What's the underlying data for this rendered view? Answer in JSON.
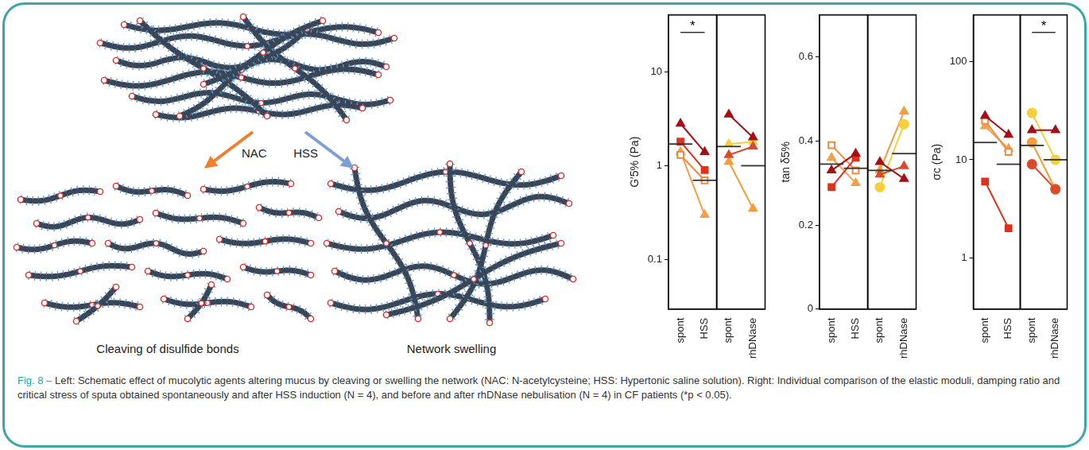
{
  "diagram": {
    "arrows": [
      {
        "label": "NAC",
        "color": "#f08030"
      },
      {
        "label": "HSS",
        "color": "#7f9fd4"
      }
    ],
    "panels": [
      {
        "label": "Cleaving of disulfide bonds"
      },
      {
        "label": "Network swelling"
      }
    ]
  },
  "chart_data": [
    {
      "type": "line",
      "ylabel": "G′5% (Pa)",
      "log": "y",
      "ylim": [
        0.03,
        40
      ],
      "yticks": [
        0.1,
        1,
        10
      ],
      "grid": false,
      "groups": [
        {
          "categories": [
            "spont",
            "HSS"
          ],
          "significance": "*",
          "means": [
            1.7,
            0.7
          ],
          "series": [
            {
              "color": "#a50f15",
              "marker": "triangle",
              "values": [
                2.8,
                1.4
              ]
            },
            {
              "color": "#e0301e",
              "marker": "square",
              "values": [
                1.8,
                0.9
              ]
            },
            {
              "color": "#f08a3c",
              "marker": "open_square",
              "values": [
                1.3,
                0.7
              ]
            },
            {
              "color": "#f4a04a",
              "marker": "triangle",
              "values": [
                1.4,
                0.3
              ]
            }
          ]
        },
        {
          "categories": [
            "spont",
            "rhDNase"
          ],
          "means": [
            1.6,
            1.0
          ],
          "series": [
            {
              "color": "#a50f15",
              "marker": "triangle",
              "values": [
                3.5,
                2.0
              ]
            },
            {
              "color": "#d94b2b",
              "marker": "triangle",
              "values": [
                1.3,
                1.6
              ]
            },
            {
              "color": "#f6d03c",
              "marker": "triangle",
              "values": [
                1.7,
                1.8
              ]
            },
            {
              "color": "#f39c3a",
              "marker": "triangle",
              "values": [
                1.1,
                0.35
              ]
            }
          ]
        }
      ]
    },
    {
      "type": "line",
      "ylabel": "tan δ5%",
      "ylim": [
        0,
        0.7
      ],
      "yticks": [
        0,
        0.2,
        0.4,
        0.6
      ],
      "grid": false,
      "groups": [
        {
          "categories": [
            "spont",
            "HSS"
          ],
          "means": [
            0.345,
            0.335
          ],
          "series": [
            {
              "color": "#a50f15",
              "marker": "triangle",
              "values": [
                0.33,
                0.37
              ]
            },
            {
              "color": "#e0301e",
              "marker": "square",
              "values": [
                0.29,
                0.36
              ]
            },
            {
              "color": "#f08a3c",
              "marker": "open_square",
              "values": [
                0.39,
                0.33
              ]
            },
            {
              "color": "#f4a04a",
              "marker": "triangle",
              "values": [
                0.36,
                0.3
              ]
            }
          ]
        },
        {
          "categories": [
            "spont",
            "rhDNase"
          ],
          "means": [
            0.33,
            0.37
          ],
          "series": [
            {
              "color": "#a50f15",
              "marker": "triangle",
              "values": [
                0.35,
                0.31
              ]
            },
            {
              "color": "#d94b2b",
              "marker": "triangle",
              "values": [
                0.32,
                0.34
              ]
            },
            {
              "color": "#f6d03c",
              "marker": "circle",
              "values": [
                0.29,
                0.44
              ]
            },
            {
              "color": "#f39c3a",
              "marker": "triangle",
              "values": [
                0.33,
                0.47
              ]
            }
          ]
        }
      ]
    },
    {
      "type": "line",
      "ylabel": "σc (Pa)",
      "log": "y",
      "ylim": [
        0.3,
        300
      ],
      "yticks": [
        1,
        10,
        100
      ],
      "grid": false,
      "groups": [
        {
          "categories": [
            "spont",
            "HSS"
          ],
          "means": [
            15,
            9
          ],
          "series": [
            {
              "color": "#a50f15",
              "marker": "triangle",
              "values": [
                28,
                18
              ]
            },
            {
              "color": "#e0301e",
              "marker": "square",
              "values": [
                6,
                2
              ]
            },
            {
              "color": "#f08a3c",
              "marker": "open_square",
              "values": [
                25,
                12
              ]
            },
            {
              "color": "#f4a04a",
              "marker": "triangle",
              "values": [
                22,
                13
              ]
            }
          ]
        },
        {
          "categories": [
            "spont",
            "rhDNase"
          ],
          "significance": "*",
          "means": [
            14,
            10
          ],
          "series": [
            {
              "color": "#a50f15",
              "marker": "triangle",
              "values": [
                20,
                20
              ]
            },
            {
              "color": "#d94b2b",
              "marker": "circle",
              "values": [
                9,
                5
              ]
            },
            {
              "color": "#f6d03c",
              "marker": "circle",
              "values": [
                30,
                10
              ]
            },
            {
              "color": "#f39c3a",
              "marker": "circle",
              "values": [
                15,
                5
              ]
            }
          ]
        }
      ]
    }
  ],
  "caption": {
    "label": "Fig. 8 –",
    "text": "Left: Schematic effect of mucolytic agents altering mucus by cleaving or swelling the network (NAC: N-acetylcysteine; HSS: Hypertonic saline solution). Right: Individual comparison of the elastic moduli, damping ratio and critical stress of sputa obtained spontaneously and after HSS induction (N = 4), and before and after rhDNase nebulisation (N = 4) in CF patients (*p < 0.05)."
  }
}
